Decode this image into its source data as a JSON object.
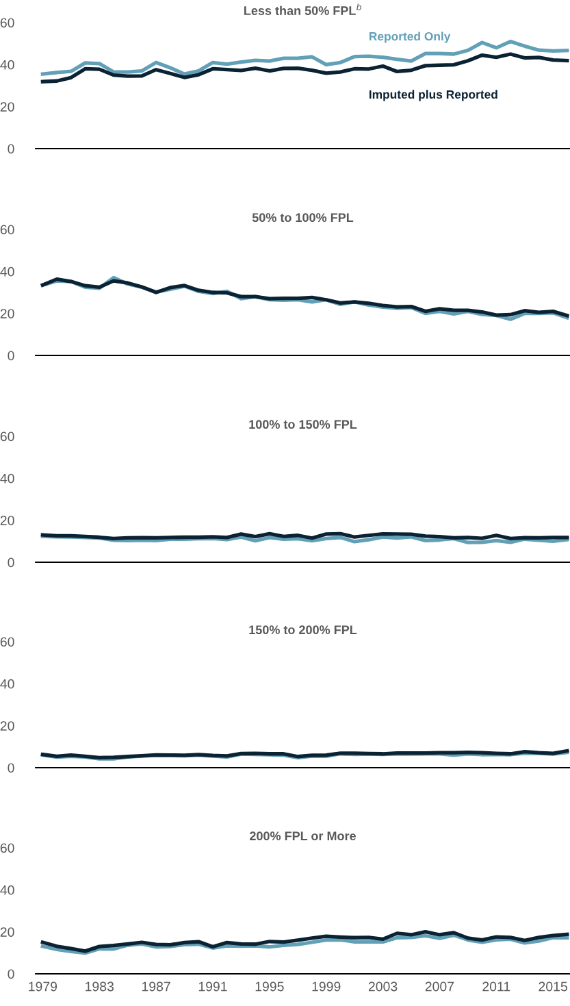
{
  "chart_data": [
    {
      "type": "line",
      "title": "Less than 50% FPL$^{b}$",
      "x": [
        1979,
        1980,
        1981,
        1982,
        1983,
        1984,
        1985,
        1986,
        1987,
        1988,
        1989,
        1990,
        1991,
        1992,
        1993,
        1994,
        1995,
        1996,
        1997,
        1998,
        1999,
        2000,
        2001,
        2002,
        2003,
        2004,
        2005,
        2006,
        2007,
        2008,
        2009,
        2010,
        2011,
        2012,
        2013,
        2014,
        2015,
        2016
      ],
      "xlim": [
        1978.5,
        2016.2
      ],
      "xticks": [
        1979,
        1983,
        1987,
        1991,
        1995,
        1999,
        2003,
        2007,
        2011,
        2015
      ],
      "ylim": [
        0,
        60
      ],
      "yticks": [
        0,
        20,
        40,
        60
      ],
      "tick_labels": "y",
      "grid": false,
      "legend": false,
      "marker": "none",
      "line_style": "solid",
      "series": [
        {
          "name": "Reported Only",
          "color": "#62a0b8",
          "values": [
            35.5,
            36.2,
            36.8,
            40.8,
            40.5,
            36.5,
            36.5,
            37,
            41,
            38.5,
            35.5,
            37,
            41,
            40.2,
            41.2,
            42,
            41.7,
            43,
            43,
            43.7,
            40,
            41,
            43.8,
            44,
            43.5,
            42.5,
            41.7,
            45.3,
            45.3,
            45,
            46.8,
            50.5,
            48,
            51,
            48.8,
            46.9,
            46.5,
            46.7
          ]
        },
        {
          "name": "Imputed plus Reported",
          "color": "#0b2233",
          "values": [
            31.9,
            32.2,
            33.8,
            38,
            37.8,
            35,
            34.5,
            34.6,
            37.6,
            35.8,
            33.9,
            35.2,
            38,
            37.6,
            37.2,
            38.3,
            37,
            38.2,
            38.3,
            37.3,
            35.9,
            36.5,
            38,
            37.9,
            39.3,
            36.7,
            37.3,
            39.5,
            39.7,
            39.9,
            41.8,
            44.5,
            43.5,
            45,
            43.2,
            43.4,
            42.2,
            41.9
          ]
        }
      ]
    },
    {
      "type": "line",
      "title": "50% to 100% FPL",
      "x": [
        1979,
        1980,
        1981,
        1982,
        1983,
        1984,
        1985,
        1986,
        1987,
        1988,
        1989,
        1990,
        1991,
        1992,
        1993,
        1994,
        1995,
        1996,
        1997,
        1998,
        1999,
        2000,
        2001,
        2002,
        2003,
        2004,
        2005,
        2006,
        2007,
        2008,
        2009,
        2010,
        2011,
        2012,
        2013,
        2014,
        2015,
        2016
      ],
      "xlim": [
        1978.5,
        2016.2
      ],
      "xticks": [
        1979,
        1983,
        1987,
        1991,
        1995,
        1999,
        2003,
        2007,
        2011,
        2015
      ],
      "ylim": [
        0,
        60
      ],
      "yticks": [
        0,
        20,
        40,
        60
      ],
      "tick_labels": "y",
      "grid": false,
      "legend": false,
      "marker": "none",
      "line_style": "solid",
      "series": [
        {
          "color": "#62a0b8",
          "values": [
            33.5,
            35.5,
            35.2,
            32.5,
            32,
            37,
            34,
            32.5,
            30.2,
            31.5,
            33,
            30.5,
            29.5,
            30.5,
            27,
            28,
            26.5,
            26.3,
            26.5,
            25.5,
            26.5,
            24.3,
            25.5,
            24,
            23,
            22.5,
            22.8,
            20,
            21,
            19.8,
            21,
            19.5,
            19,
            17.2,
            20,
            20,
            20.3,
            18
          ]
        },
        {
          "color": "#0b2233",
          "values": [
            33.5,
            36.3,
            35.2,
            33.2,
            32.5,
            35.5,
            34.5,
            32.6,
            30,
            32.3,
            33.3,
            31,
            30,
            29.8,
            28,
            28,
            27,
            27.2,
            27.2,
            27.6,
            26.5,
            25,
            25.5,
            24.8,
            23.8,
            23.1,
            23.3,
            21,
            22.2,
            21.5,
            21.5,
            20.7,
            19.2,
            19.4,
            21.3,
            20.5,
            21,
            19
          ]
        }
      ]
    },
    {
      "type": "line",
      "title": "100% to 150% FPL",
      "x": [
        1979,
        1980,
        1981,
        1982,
        1983,
        1984,
        1985,
        1986,
        1987,
        1988,
        1989,
        1990,
        1991,
        1992,
        1993,
        1994,
        1995,
        1996,
        1997,
        1998,
        1999,
        2000,
        2001,
        2002,
        2003,
        2004,
        2005,
        2006,
        2007,
        2008,
        2009,
        2010,
        2011,
        2012,
        2013,
        2014,
        2015,
        2016
      ],
      "xlim": [
        1978.5,
        2016.2
      ],
      "xticks": [
        1979,
        1983,
        1987,
        1991,
        1995,
        1999,
        2003,
        2007,
        2011,
        2015
      ],
      "ylim": [
        0,
        60
      ],
      "yticks": [
        0,
        20,
        40,
        60
      ],
      "tick_labels": "y",
      "grid": false,
      "legend": false,
      "marker": "none",
      "line_style": "solid",
      "series": [
        {
          "color": "#62a0b8",
          "values": [
            12.3,
            12.1,
            12,
            11.8,
            11.5,
            10.5,
            10.3,
            10.5,
            10.3,
            11,
            11,
            11.2,
            11.3,
            10.8,
            12,
            10.2,
            11.8,
            11,
            11.2,
            10.2,
            11.3,
            11.8,
            9.8,
            10.7,
            12,
            11.5,
            12.1,
            10.3,
            10.6,
            11.3,
            9.4,
            9.5,
            10.3,
            9.5,
            11,
            10.5,
            10,
            10.8
          ]
        },
        {
          "color": "#0b2233",
          "values": [
            13,
            12.6,
            12.6,
            12.3,
            11.9,
            11.3,
            11.6,
            11.7,
            11.6,
            11.8,
            11.9,
            11.9,
            12.1,
            11.8,
            13.4,
            12.2,
            13.6,
            12.3,
            12.8,
            11.5,
            13.4,
            13.6,
            12,
            12.8,
            13.5,
            13.4,
            13.3,
            12.4,
            12.2,
            11.6,
            11.8,
            11.4,
            12.8,
            11.3,
            11.7,
            11.6,
            11.8,
            11.8
          ]
        }
      ]
    },
    {
      "type": "line",
      "title": "150% to 200% FPL",
      "x": [
        1979,
        1980,
        1981,
        1982,
        1983,
        1984,
        1985,
        1986,
        1987,
        1988,
        1989,
        1990,
        1991,
        1992,
        1993,
        1994,
        1995,
        1996,
        1997,
        1998,
        1999,
        2000,
        2001,
        2002,
        2003,
        2004,
        2005,
        2006,
        2007,
        2008,
        2009,
        2010,
        2011,
        2012,
        2013,
        2014,
        2015,
        2016
      ],
      "xlim": [
        1978.5,
        2016.2
      ],
      "xticks": [
        1979,
        1983,
        1987,
        1991,
        1995,
        1999,
        2003,
        2007,
        2011,
        2015
      ],
      "ylim": [
        0,
        60
      ],
      "yticks": [
        0,
        20,
        40,
        60
      ],
      "tick_labels": "y",
      "grid": false,
      "legend": false,
      "marker": "none",
      "line_style": "solid",
      "series": [
        {
          "color": "#62a0b8",
          "values": [
            6,
            5,
            5.4,
            5.1,
            4.2,
            4.2,
            5.1,
            5.5,
            5.9,
            5.8,
            5.7,
            6,
            5.5,
            5.1,
            6.5,
            6.3,
            6.2,
            6,
            4.8,
            5.5,
            5.4,
            6.6,
            6.3,
            6.5,
            6.3,
            6.6,
            6.5,
            6.6,
            6.6,
            6,
            6.6,
            6.2,
            6.3,
            6.2,
            6.9,
            6.8,
            6.5,
            7.3
          ]
        },
        {
          "color": "#0b2233",
          "values": [
            6.3,
            5.4,
            6,
            5.4,
            4.8,
            4.9,
            5.3,
            5.7,
            6.1,
            6,
            5.9,
            6.2,
            5.8,
            5.6,
            6.7,
            6.8,
            6.6,
            6.6,
            5.3,
            5.9,
            6,
            6.9,
            6.9,
            6.7,
            6.6,
            7,
            7,
            7,
            7.1,
            7.1,
            7.3,
            7.1,
            6.8,
            6.6,
            7.6,
            7.1,
            6.8,
            8
          ]
        }
      ]
    },
    {
      "type": "line",
      "title": "200% FPL or More",
      "x": [
        1979,
        1980,
        1981,
        1982,
        1983,
        1984,
        1985,
        1986,
        1987,
        1988,
        1989,
        1990,
        1991,
        1992,
        1993,
        1994,
        1995,
        1996,
        1997,
        1998,
        1999,
        2000,
        2001,
        2002,
        2003,
        2004,
        2005,
        2006,
        2007,
        2008,
        2009,
        2010,
        2011,
        2012,
        2013,
        2014,
        2015,
        2016
      ],
      "xlim": [
        1978.5,
        2016.2
      ],
      "xticks": [
        1979,
        1983,
        1987,
        1991,
        1995,
        1999,
        2003,
        2007,
        2011,
        2015
      ],
      "ylim": [
        0,
        60
      ],
      "yticks": [
        0,
        20,
        40,
        60
      ],
      "grid": false,
      "legend": false,
      "marker": "none",
      "line_style": "solid",
      "series": [
        {
          "color": "#62a0b8",
          "values": [
            13.1,
            11.6,
            10.6,
            9.9,
            11.9,
            11.8,
            13.6,
            14.2,
            12.8,
            13,
            13.9,
            14.1,
            12.3,
            13.3,
            13.2,
            13.3,
            12.8,
            13.6,
            14,
            15,
            16.1,
            16.2,
            15.2,
            15.3,
            15.2,
            17.2,
            17.3,
            18.1,
            16.9,
            18.4,
            16.1,
            15,
            16.2,
            16.5,
            14.7,
            15.6,
            17.2,
            17.2
          ]
        },
        {
          "color": "#0b2233",
          "values": [
            15,
            13.1,
            12,
            10.8,
            13,
            13.5,
            14.2,
            15,
            14,
            13.8,
            14.9,
            15.3,
            12.9,
            14.9,
            14.2,
            14.1,
            15.4,
            15.1,
            16,
            17,
            17.9,
            17.5,
            17.2,
            17.3,
            16.5,
            19.3,
            18.6,
            20,
            18.6,
            19.6,
            17,
            16.1,
            17.6,
            17.3,
            15.9,
            17.3,
            18.2,
            18.8
          ]
        }
      ]
    }
  ]
}
